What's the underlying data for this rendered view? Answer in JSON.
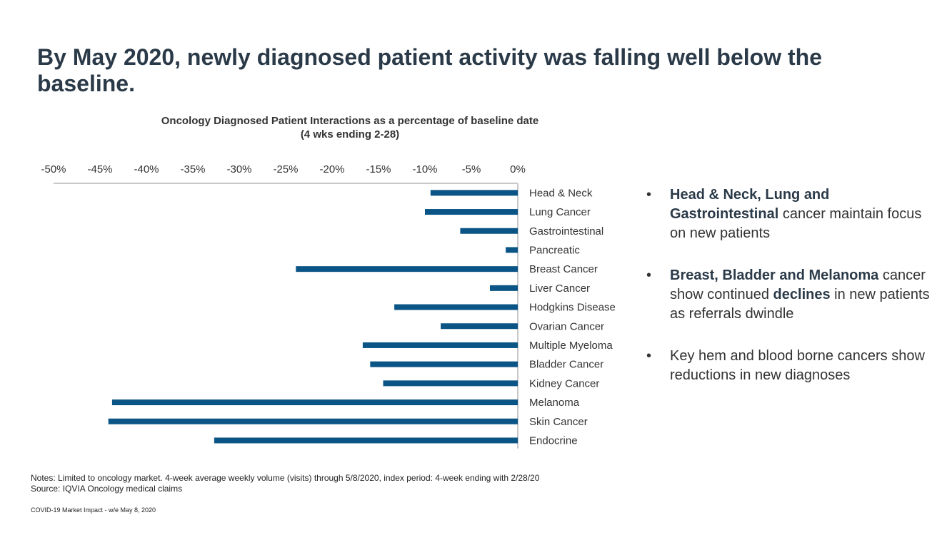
{
  "headline": "By May 2020, newly diagnosed patient activity was falling well below the baseline.",
  "chart_data": {
    "type": "bar",
    "orientation": "horizontal",
    "title": "Oncology Diagnosed Patient Interactions as a percentage of baseline date",
    "subtitle": "(4 wks ending 2-28)",
    "xlabel": "",
    "ylabel": "",
    "xlim": [
      -50,
      0
    ],
    "ticks": [
      -50,
      -45,
      -40,
      -35,
      -30,
      -25,
      -20,
      -15,
      -10,
      -5,
      0
    ],
    "tick_labels": [
      "-50%",
      "-45%",
      "-40%",
      "-35%",
      "-30%",
      "-25%",
      "-20%",
      "-15%",
      "-10%",
      "-5%",
      "0%"
    ],
    "axis_position": "top",
    "grid": false,
    "bar_color": "#0b5586",
    "categories": [
      "Head & Neck",
      "Lung Cancer",
      "Gastrointestinal",
      "Pancreatic",
      "Breast Cancer",
      "Liver Cancer",
      "Hodgkins Disease",
      "Ovarian Cancer",
      "Multiple Myeloma",
      "Bladder Cancer",
      "Kidney Cancer",
      "Melanoma",
      "Skin Cancer",
      "Endocrine"
    ],
    "values": [
      -9.4,
      -10.0,
      -6.2,
      -1.3,
      -23.9,
      -3.0,
      -13.3,
      -8.3,
      -16.7,
      -15.9,
      -14.5,
      -43.7,
      -44.1,
      -32.7
    ]
  },
  "bullets": [
    [
      {
        "text": "Head & Neck, Lung and Gastrointestinal",
        "bold": true
      },
      {
        "text": " cancer maintain focus on new patients",
        "bold": false
      }
    ],
    [
      {
        "text": "Breast, Bladder and Melanoma",
        "bold": true
      },
      {
        "text": " cancer show continued ",
        "bold": false
      },
      {
        "text": "declines",
        "bold": true
      },
      {
        "text": " in new patients as referrals dwindle",
        "bold": false
      }
    ],
    [
      {
        "text": "Key hem and blood borne cancers show reductions in new diagnoses",
        "bold": false
      }
    ]
  ],
  "notes": {
    "line1": "Notes: Limited to oncology market. 4-week average weekly volume (visits) through 5/8/2020, index period: 4-week ending with 2/28/20",
    "line2": "Source: IQVIA Oncology medical claims"
  },
  "footer": "COVID-19 Market Impact - w/e May 8, 2020"
}
